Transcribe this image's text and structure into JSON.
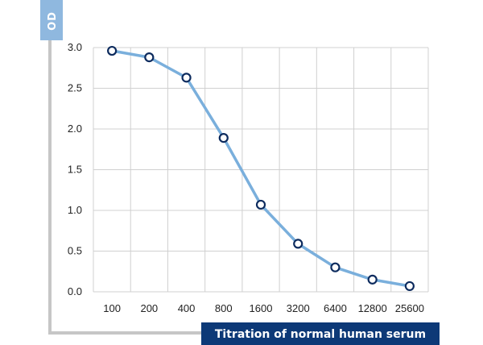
{
  "chart_data": {
    "type": "line",
    "title": "",
    "ylabel": "OD",
    "xlabel": "Titration of normal human serum",
    "categories": [
      "100",
      "200",
      "400",
      "800",
      "1600",
      "3200",
      "6400",
      "12800",
      "25600"
    ],
    "series": [
      {
        "values": [
          2.96,
          2.88,
          2.63,
          1.89,
          1.07,
          0.59,
          0.3,
          0.15,
          0.07
        ]
      }
    ],
    "ylim": [
      0,
      3.0
    ],
    "yticks": [
      "0.0",
      "0.5",
      "1.0",
      "1.5",
      "2.0",
      "2.5",
      "3.0"
    ],
    "grid": true,
    "colors": {
      "line": "#7aafdc",
      "marker_stroke": "#0d2b5e",
      "marker_fill": "#ffffff",
      "grid": "#d0d0d0",
      "ylabel_box": "#8fb8df",
      "xlabel_box": "#0d3977",
      "frame": "#c6c6c6"
    }
  }
}
